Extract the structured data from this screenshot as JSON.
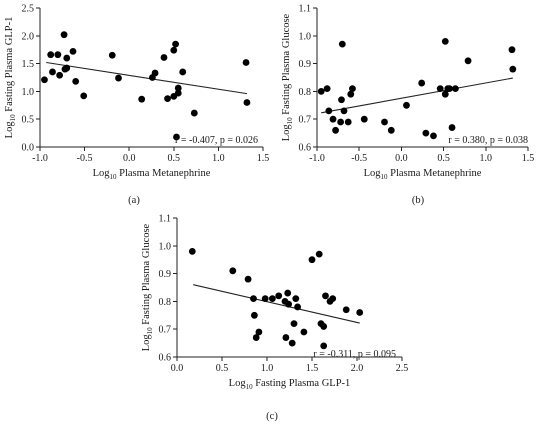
{
  "chart_data": [
    {
      "type": "scatter",
      "panel_label": "(a)",
      "xlabel": {
        "pre": "Log",
        "sub": "10",
        "post": " Plasma Metanephrine"
      },
      "ylabel": {
        "pre": "Log",
        "sub": "10",
        "post": " Fasting Plasma GLP-1"
      },
      "xlim": [
        -1.0,
        1.5
      ],
      "ylim": [
        0.0,
        2.5
      ],
      "xticks": [
        -1.0,
        -0.5,
        0.0,
        0.5,
        1.0,
        1.5
      ],
      "yticks": [
        0.0,
        0.5,
        1.0,
        1.5,
        2.0,
        2.5
      ],
      "xtick_labels": [
        "-1.0",
        "-0.5",
        "0.0",
        "0.5",
        "1.0",
        "1.5"
      ],
      "ytick_labels": [
        "0.0",
        "0.5",
        "1.0",
        "1.5",
        "2.0",
        "2.5"
      ],
      "annotation": "r = -0.407, p = 0.026",
      "trendline": [
        [
          -0.93,
          1.52
        ],
        [
          1.32,
          0.96
        ]
      ],
      "points": [
        [
          -0.95,
          1.21
        ],
        [
          -0.88,
          1.66
        ],
        [
          -0.86,
          1.35
        ],
        [
          -0.8,
          1.66
        ],
        [
          -0.78,
          1.29
        ],
        [
          -0.73,
          2.02
        ],
        [
          -0.72,
          1.4
        ],
        [
          -0.7,
          1.42
        ],
        [
          -0.7,
          1.6
        ],
        [
          -0.63,
          1.72
        ],
        [
          -0.6,
          1.18
        ],
        [
          -0.51,
          0.92
        ],
        [
          -0.19,
          1.65
        ],
        [
          -0.12,
          1.24
        ],
        [
          0.14,
          0.86
        ],
        [
          0.26,
          1.25
        ],
        [
          0.29,
          1.33
        ],
        [
          0.39,
          1.61
        ],
        [
          0.43,
          0.87
        ],
        [
          0.5,
          1.74
        ],
        [
          0.5,
          0.91
        ],
        [
          0.52,
          1.85
        ],
        [
          0.53,
          0.18
        ],
        [
          0.55,
          0.97
        ],
        [
          0.55,
          1.06
        ],
        [
          0.6,
          1.35
        ],
        [
          0.73,
          0.61
        ],
        [
          1.31,
          1.52
        ],
        [
          1.32,
          0.8
        ]
      ]
    },
    {
      "type": "scatter",
      "panel_label": "(b)",
      "xlabel": {
        "pre": "Log",
        "sub": "10",
        "post": " Plasma Metanephrine"
      },
      "ylabel": {
        "pre": "Log",
        "sub": "10",
        "post": " Fasting Plasma Glucose"
      },
      "xlim": [
        -1.0,
        1.5
      ],
      "ylim": [
        0.6,
        1.1
      ],
      "xticks": [
        -1.0,
        -0.5,
        0.0,
        0.5,
        1.0,
        1.5
      ],
      "yticks": [
        0.6,
        0.7,
        0.8,
        0.9,
        1.0,
        1.1
      ],
      "xtick_labels": [
        "-1.0",
        "-0.5",
        "0.0",
        "0.5",
        "1.0",
        "1.5"
      ],
      "ytick_labels": [
        "0.6",
        "0.7",
        "0.8",
        "0.9",
        "1.0",
        "1.1"
      ],
      "annotation": "r = 0.380, p = 0.038",
      "trendline": [
        [
          -0.95,
          0.723
        ],
        [
          1.32,
          0.848
        ]
      ],
      "points": [
        [
          -0.95,
          0.8
        ],
        [
          -0.88,
          0.81
        ],
        [
          -0.86,
          0.73
        ],
        [
          -0.81,
          0.7
        ],
        [
          -0.78,
          0.66
        ],
        [
          -0.72,
          0.69
        ],
        [
          -0.71,
          0.77
        ],
        [
          -0.7,
          0.97
        ],
        [
          -0.68,
          0.73
        ],
        [
          -0.63,
          0.69
        ],
        [
          -0.6,
          0.79
        ],
        [
          -0.58,
          0.81
        ],
        [
          -0.44,
          0.7
        ],
        [
          -0.2,
          0.69
        ],
        [
          -0.12,
          0.66
        ],
        [
          0.06,
          0.75
        ],
        [
          0.24,
          0.83
        ],
        [
          0.29,
          0.65
        ],
        [
          0.38,
          0.64
        ],
        [
          0.46,
          0.81
        ],
        [
          0.52,
          0.98
        ],
        [
          0.52,
          0.79
        ],
        [
          0.55,
          0.81
        ],
        [
          0.57,
          0.81
        ],
        [
          0.6,
          0.67
        ],
        [
          0.64,
          0.81
        ],
        [
          0.79,
          0.91
        ],
        [
          1.31,
          0.95
        ],
        [
          1.32,
          0.88
        ]
      ]
    },
    {
      "type": "scatter",
      "panel_label": "(c)",
      "xlabel": {
        "pre": "Log",
        "sub": "10",
        "post": " Fasting Plasma GLP-1"
      },
      "ylabel": {
        "pre": "Log",
        "sub": "10",
        "post": " Fasting Plasma Glucose"
      },
      "xlim": [
        0.0,
        2.5
      ],
      "ylim": [
        0.6,
        1.1
      ],
      "xticks": [
        0.0,
        0.5,
        1.0,
        1.5,
        2.0,
        2.5
      ],
      "yticks": [
        0.6,
        0.7,
        0.8,
        0.9,
        1.0,
        1.1
      ],
      "xtick_labels": [
        "0.0",
        "0.5",
        "1.0",
        "1.5",
        "2.0",
        "2.5"
      ],
      "ytick_labels": [
        "0.6",
        "0.7",
        "0.8",
        "0.9",
        "1.0",
        "1.1"
      ],
      "annotation": "r = -0.311, p = 0.095",
      "trendline": [
        [
          0.18,
          0.86
        ],
        [
          2.03,
          0.722
        ]
      ],
      "points": [
        [
          0.17,
          0.98
        ],
        [
          0.62,
          0.91
        ],
        [
          0.79,
          0.88
        ],
        [
          0.85,
          0.81
        ],
        [
          0.86,
          0.75
        ],
        [
          0.88,
          0.67
        ],
        [
          0.91,
          0.69
        ],
        [
          0.98,
          0.81
        ],
        [
          1.06,
          0.81
        ],
        [
          1.13,
          0.82
        ],
        [
          1.2,
          0.8
        ],
        [
          1.21,
          0.67
        ],
        [
          1.23,
          0.83
        ],
        [
          1.24,
          0.79
        ],
        [
          1.28,
          0.65
        ],
        [
          1.3,
          0.72
        ],
        [
          1.32,
          0.81
        ],
        [
          1.34,
          0.78
        ],
        [
          1.41,
          0.69
        ],
        [
          1.5,
          0.95
        ],
        [
          1.58,
          0.97
        ],
        [
          1.6,
          0.72
        ],
        [
          1.63,
          0.64
        ],
        [
          1.63,
          0.71
        ],
        [
          1.65,
          0.82
        ],
        [
          1.7,
          0.8
        ],
        [
          1.73,
          0.81
        ],
        [
          1.88,
          0.77
        ],
        [
          2.03,
          0.76
        ]
      ]
    }
  ]
}
